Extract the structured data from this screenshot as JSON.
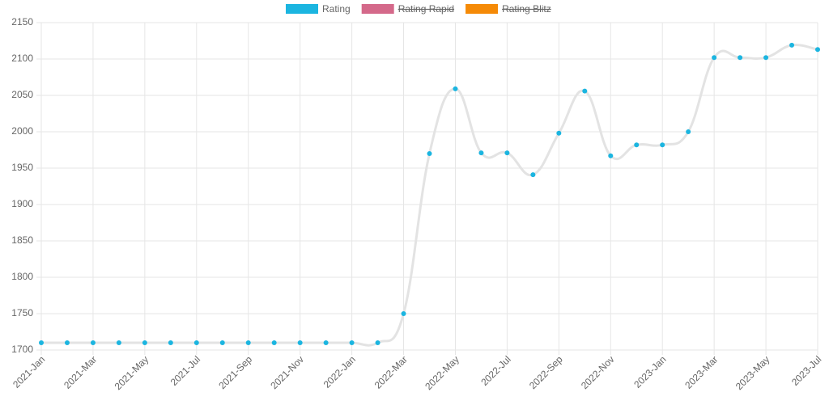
{
  "chart_data": {
    "type": "line",
    "categories": [
      "2021-Jan",
      null,
      "2021-Mar",
      null,
      "2021-May",
      null,
      "2021-Jul",
      null,
      "2021-Sep",
      null,
      "2021-Nov",
      null,
      "2022-Jan",
      null,
      "2022-Mar",
      null,
      "2022-May",
      null,
      "2022-Jul",
      null,
      "2022-Sep",
      null,
      "2022-Nov",
      null,
      "2023-Jan",
      null,
      "2023-Mar",
      null,
      "2023-May",
      null,
      "2023-Jul"
    ],
    "series": [
      {
        "name": "Rating",
        "color": "#1bb5e0",
        "line_color": "#e3e3e3",
        "values": [
          1710,
          1710,
          1710,
          1710,
          1710,
          1710,
          1710,
          1710,
          1710,
          1710,
          1710,
          1710,
          1710,
          1710,
          1750,
          1970,
          2059,
          1971,
          1971,
          1941,
          1998,
          2056,
          1967,
          1982,
          1982,
          2000,
          2102,
          2102,
          2102,
          2119,
          2113
        ]
      },
      {
        "name": "Rating Rapid",
        "color": "#d4698a",
        "hidden": true
      },
      {
        "name": "Rating Blitz",
        "color": "#f58a07",
        "hidden": true
      }
    ],
    "ylim": [
      1700,
      2150
    ],
    "yticks": [
      1700,
      1750,
      1800,
      1850,
      1900,
      1950,
      2000,
      2050,
      2100,
      2150
    ],
    "grid": true,
    "legend": "top"
  }
}
